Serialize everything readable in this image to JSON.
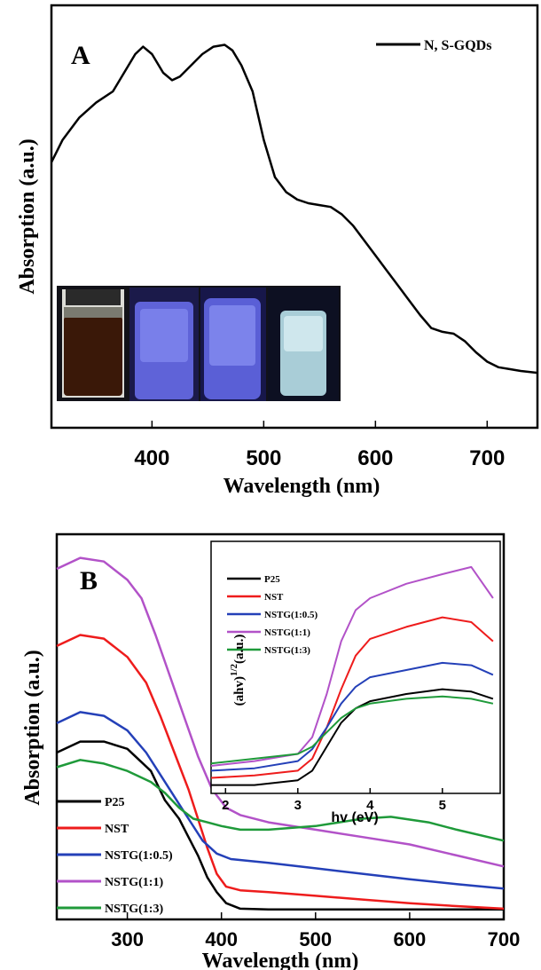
{
  "chart_data": [
    {
      "type": "line",
      "panel_label": "A",
      "xlabel": "Wavelength (nm)",
      "ylabel": "Absorption (a.u.)",
      "xlim": [
        310,
        745
      ],
      "ylim": [
        0,
        1
      ],
      "xticks": [
        400,
        500,
        600,
        700
      ],
      "yticks_shown": false,
      "legend_position": "top-right",
      "series": [
        {
          "name": "N, S-GQDs",
          "color": "#000000",
          "x": [
            310,
            320,
            335,
            350,
            365,
            375,
            385,
            392,
            400,
            410,
            418,
            425,
            435,
            445,
            455,
            465,
            472,
            480,
            490,
            500,
            510,
            520,
            530,
            540,
            550,
            560,
            570,
            580,
            590,
            600,
            610,
            620,
            630,
            640,
            650,
            660,
            670,
            680,
            690,
            700,
            710,
            720,
            730,
            745
          ],
          "y": [
            0.66,
            0.72,
            0.78,
            0.82,
            0.85,
            0.9,
            0.95,
            0.97,
            0.95,
            0.9,
            0.88,
            0.89,
            0.92,
            0.95,
            0.97,
            0.975,
            0.96,
            0.92,
            0.85,
            0.72,
            0.62,
            0.58,
            0.56,
            0.55,
            0.545,
            0.54,
            0.52,
            0.49,
            0.45,
            0.41,
            0.37,
            0.33,
            0.29,
            0.25,
            0.215,
            0.205,
            0.2,
            0.18,
            0.15,
            0.125,
            0.11,
            0.105,
            0.1,
            0.095
          ]
        }
      ],
      "inset": {
        "type": "photo",
        "description_in_image": "vials",
        "panels": 4
      }
    },
    {
      "type": "line",
      "panel_label": "B",
      "xlabel": "Wavelength (nm)",
      "ylabel": "Absorption (a.u.)",
      "xlim": [
        225,
        700
      ],
      "ylim": [
        0,
        1
      ],
      "xticks": [
        300,
        400,
        500,
        600,
        700
      ],
      "yticks_shown": false,
      "legend_position": "bottom-left",
      "series": [
        {
          "name": "P25",
          "color": "#000000",
          "x": [
            225,
            250,
            275,
            300,
            325,
            340,
            355,
            365,
            375,
            385,
            395,
            405,
            420,
            450,
            500,
            550,
            600,
            650,
            700
          ],
          "y": [
            0.43,
            0.46,
            0.46,
            0.44,
            0.38,
            0.3,
            0.25,
            0.2,
            0.15,
            0.09,
            0.05,
            0.02,
            0.005,
            0.003,
            0.003,
            0.003,
            0.003,
            0.003,
            0.003
          ]
        },
        {
          "name": "NST",
          "color": "#ee1c1c",
          "x": [
            225,
            250,
            275,
            300,
            320,
            335,
            350,
            365,
            375,
            385,
            395,
            405,
            420,
            450,
            500,
            550,
            600,
            650,
            700
          ],
          "y": [
            0.72,
            0.75,
            0.74,
            0.69,
            0.62,
            0.53,
            0.43,
            0.33,
            0.25,
            0.17,
            0.1,
            0.065,
            0.055,
            0.05,
            0.04,
            0.03,
            0.02,
            0.012,
            0.005
          ]
        },
        {
          "name": "NSTG(1:0.5)",
          "color": "#2440b8",
          "x": [
            225,
            250,
            275,
            300,
            320,
            335,
            350,
            365,
            380,
            395,
            410,
            450,
            500,
            550,
            600,
            650,
            700
          ],
          "y": [
            0.51,
            0.54,
            0.53,
            0.49,
            0.43,
            0.37,
            0.31,
            0.25,
            0.19,
            0.155,
            0.14,
            0.13,
            0.115,
            0.1,
            0.085,
            0.072,
            0.06
          ]
        },
        {
          "name": "NSTG(1:1)",
          "color": "#b252c8",
          "x": [
            225,
            250,
            275,
            300,
            315,
            330,
            345,
            360,
            375,
            390,
            405,
            420,
            450,
            500,
            550,
            600,
            650,
            700
          ],
          "y": [
            0.93,
            0.96,
            0.95,
            0.9,
            0.85,
            0.75,
            0.64,
            0.53,
            0.42,
            0.33,
            0.28,
            0.26,
            0.24,
            0.22,
            0.2,
            0.18,
            0.15,
            0.12
          ]
        },
        {
          "name": "NSTG(1:3)",
          "color": "#1f9a3a",
          "x": [
            225,
            250,
            275,
            300,
            325,
            340,
            355,
            370,
            385,
            400,
            420,
            450,
            500,
            550,
            580,
            620,
            650,
            700
          ],
          "y": [
            0.39,
            0.41,
            0.4,
            0.38,
            0.35,
            0.32,
            0.28,
            0.25,
            0.24,
            0.23,
            0.22,
            0.22,
            0.23,
            0.25,
            0.255,
            0.24,
            0.22,
            0.19
          ]
        }
      ],
      "inset": {
        "type": "line",
        "xlabel": "hv (eV)",
        "ylabel": "(ahv)1/2(a.u.)",
        "ylabel_base": "(ahv)",
        "ylabel_sup": "1/2",
        "ylabel_tail": "(a.u.)",
        "xlim": [
          1.8,
          5.8
        ],
        "ylim": [
          0,
          1
        ],
        "xticks": [
          2,
          3,
          4,
          5
        ],
        "legend_position": "top-left",
        "series": [
          {
            "name": "P25",
            "color": "#000000",
            "x": [
              1.8,
              2.4,
              3.0,
              3.2,
              3.4,
              3.6,
              3.8,
              4.0,
              4.5,
              5.0,
              5.4,
              5.7
            ],
            "y": [
              0.02,
              0.02,
              0.04,
              0.08,
              0.18,
              0.28,
              0.34,
              0.37,
              0.4,
              0.42,
              0.41,
              0.38
            ]
          },
          {
            "name": "NST",
            "color": "#ee1c1c",
            "x": [
              1.8,
              2.4,
              3.0,
              3.2,
              3.4,
              3.6,
              3.8,
              4.0,
              4.5,
              5.0,
              5.4,
              5.7
            ],
            "y": [
              0.05,
              0.06,
              0.08,
              0.13,
              0.26,
              0.42,
              0.56,
              0.63,
              0.68,
              0.72,
              0.7,
              0.62
            ]
          },
          {
            "name": "NSTG(1:0.5)",
            "color": "#2440b8",
            "x": [
              1.8,
              2.4,
              3.0,
              3.2,
              3.4,
              3.6,
              3.8,
              4.0,
              4.5,
              5.0,
              5.4,
              5.7
            ],
            "y": [
              0.08,
              0.09,
              0.12,
              0.17,
              0.26,
              0.36,
              0.43,
              0.47,
              0.5,
              0.53,
              0.52,
              0.48
            ]
          },
          {
            "name": "NSTG(1:1)",
            "color": "#b252c8",
            "x": [
              1.8,
              2.4,
              3.0,
              3.2,
              3.4,
              3.6,
              3.8,
              4.0,
              4.5,
              5.0,
              5.4,
              5.7
            ],
            "y": [
              0.1,
              0.12,
              0.15,
              0.22,
              0.4,
              0.62,
              0.75,
              0.8,
              0.86,
              0.9,
              0.93,
              0.8
            ]
          },
          {
            "name": "NSTG(1:3)",
            "color": "#1f9a3a",
            "x": [
              1.8,
              2.4,
              3.0,
              3.2,
              3.4,
              3.6,
              3.8,
              4.0,
              4.5,
              5.0,
              5.4,
              5.7
            ],
            "y": [
              0.11,
              0.13,
              0.15,
              0.18,
              0.24,
              0.3,
              0.34,
              0.36,
              0.38,
              0.39,
              0.38,
              0.36
            ]
          }
        ]
      }
    }
  ]
}
